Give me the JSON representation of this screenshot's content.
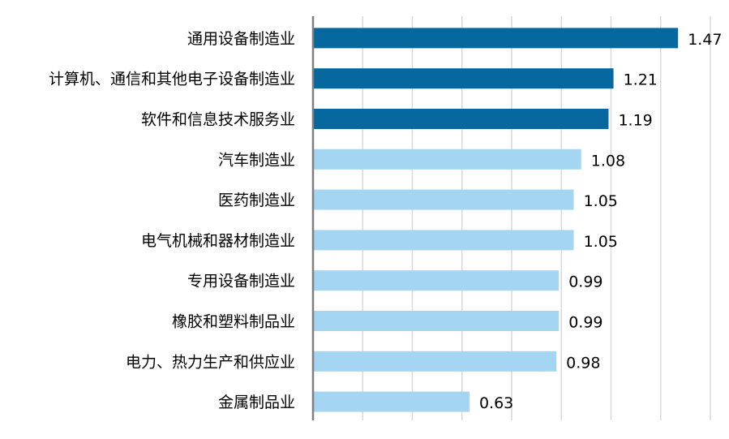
{
  "chart_data": {
    "type": "bar",
    "orientation": "horizontal",
    "title": "",
    "xlabel": "",
    "ylabel": "",
    "xlim": [
      0,
      1.6
    ],
    "grid_step": 0.2,
    "grid": true,
    "categories": [
      "通用设备制造业",
      "计算机、通信和其他电子设备制造业",
      "软件和信息技术服务业",
      "汽车制造业",
      "医药制造业",
      "电气机械和器材制造业",
      "专用设备制造业",
      "橡胶和塑料制品业",
      "电力、热力生产和供应业",
      "金属制品业"
    ],
    "values": [
      1.47,
      1.21,
      1.19,
      1.08,
      1.05,
      1.05,
      0.99,
      0.99,
      0.98,
      0.63
    ],
    "value_labels": [
      "1.47",
      "1.21",
      "1.19",
      "1.08",
      "1.05",
      "1.05",
      "0.99",
      "0.99",
      "0.98",
      "0.63"
    ],
    "highlight_count": 3,
    "colors": {
      "highlight": "#07689F",
      "normal": "#A4D5F2",
      "grid": "#D9D9D9",
      "axis": "#808080"
    }
  }
}
